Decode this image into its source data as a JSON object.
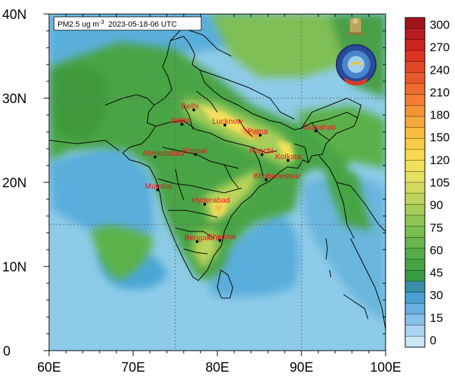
{
  "title": {
    "prefix": "PM2.5 ug m",
    "superscript": "-3",
    "timestamp": "2023-05-18-06 UTC"
  },
  "axes": {
    "x_ticks": [
      "60E",
      "70E",
      "80E",
      "90E",
      "100E"
    ],
    "y_ticks": [
      "40N",
      "30N",
      "20N",
      "10N",
      "0"
    ],
    "lon_range": [
      60,
      100
    ],
    "lat_range": [
      0,
      40
    ],
    "grid_lons": [
      75,
      90
    ],
    "grid_lats": [
      15,
      30
    ]
  },
  "colorbar": {
    "labels": [
      "300",
      "270",
      "240",
      "210",
      "180",
      "150",
      "120",
      "105",
      "90",
      "75",
      "60",
      "45",
      "30",
      "15",
      "0"
    ],
    "colors": [
      "#a0141e",
      "#b81c20",
      "#cc2422",
      "#dc3424",
      "#e24828",
      "#e8582c",
      "#ee6c2e",
      "#f27e32",
      "#f49236",
      "#f6a83a",
      "#f8bc40",
      "#f9cc48",
      "#f8d850",
      "#f2e058",
      "#e4e060",
      "#d2da60",
      "#bcd45c",
      "#a6ce58",
      "#90c654",
      "#7cbe50",
      "#68b64c",
      "#56ae48",
      "#46a444",
      "#389a42",
      "#3a8fa8",
      "#4a9ed6",
      "#68b0e0",
      "#88c2e8",
      "#aad4f0",
      "#cce6f6"
    ]
  },
  "cities": [
    {
      "name": "Delhi",
      "lon": 77.2,
      "lat": 28.6
    },
    {
      "name": "Jaipur",
      "lon": 75.8,
      "lat": 26.9
    },
    {
      "name": "Lucknow",
      "lon": 80.9,
      "lat": 26.8
    },
    {
      "name": "Patna",
      "lon": 85.1,
      "lat": 25.6
    },
    {
      "name": "Guwahati",
      "lon": 91.7,
      "lat": 26.1
    },
    {
      "name": "Ahmedabad",
      "lon": 72.6,
      "lat": 23.0
    },
    {
      "name": "Bhopal",
      "lon": 77.4,
      "lat": 23.3
    },
    {
      "name": "Ranchi",
      "lon": 85.3,
      "lat": 23.3
    },
    {
      "name": "Kolkata",
      "lon": 88.4,
      "lat": 22.6
    },
    {
      "name": "Bhubaneswar",
      "lon": 85.8,
      "lat": 20.3
    },
    {
      "name": "Mumbai",
      "lon": 72.9,
      "lat": 19.1
    },
    {
      "name": "Hyderabad",
      "lon": 78.5,
      "lat": 17.4
    },
    {
      "name": "Chennai",
      "lon": 80.3,
      "lat": 13.1
    },
    {
      "name": "Bengaluru",
      "lon": 77.6,
      "lat": 12.97
    }
  ],
  "field_colors": {
    "ocean_low": "#8ecbe8",
    "ocean_mid": "#5aaedb",
    "land_low": "#5bb24a",
    "land_mid": "#3f9a3c",
    "land_high": "#9ccc56",
    "hot_yellow": "#f3df5c",
    "hot_orange": "#f0a038",
    "boundary": "#000000",
    "city_text": "#e8141a"
  },
  "logo": {
    "name": "imd-emblem"
  }
}
